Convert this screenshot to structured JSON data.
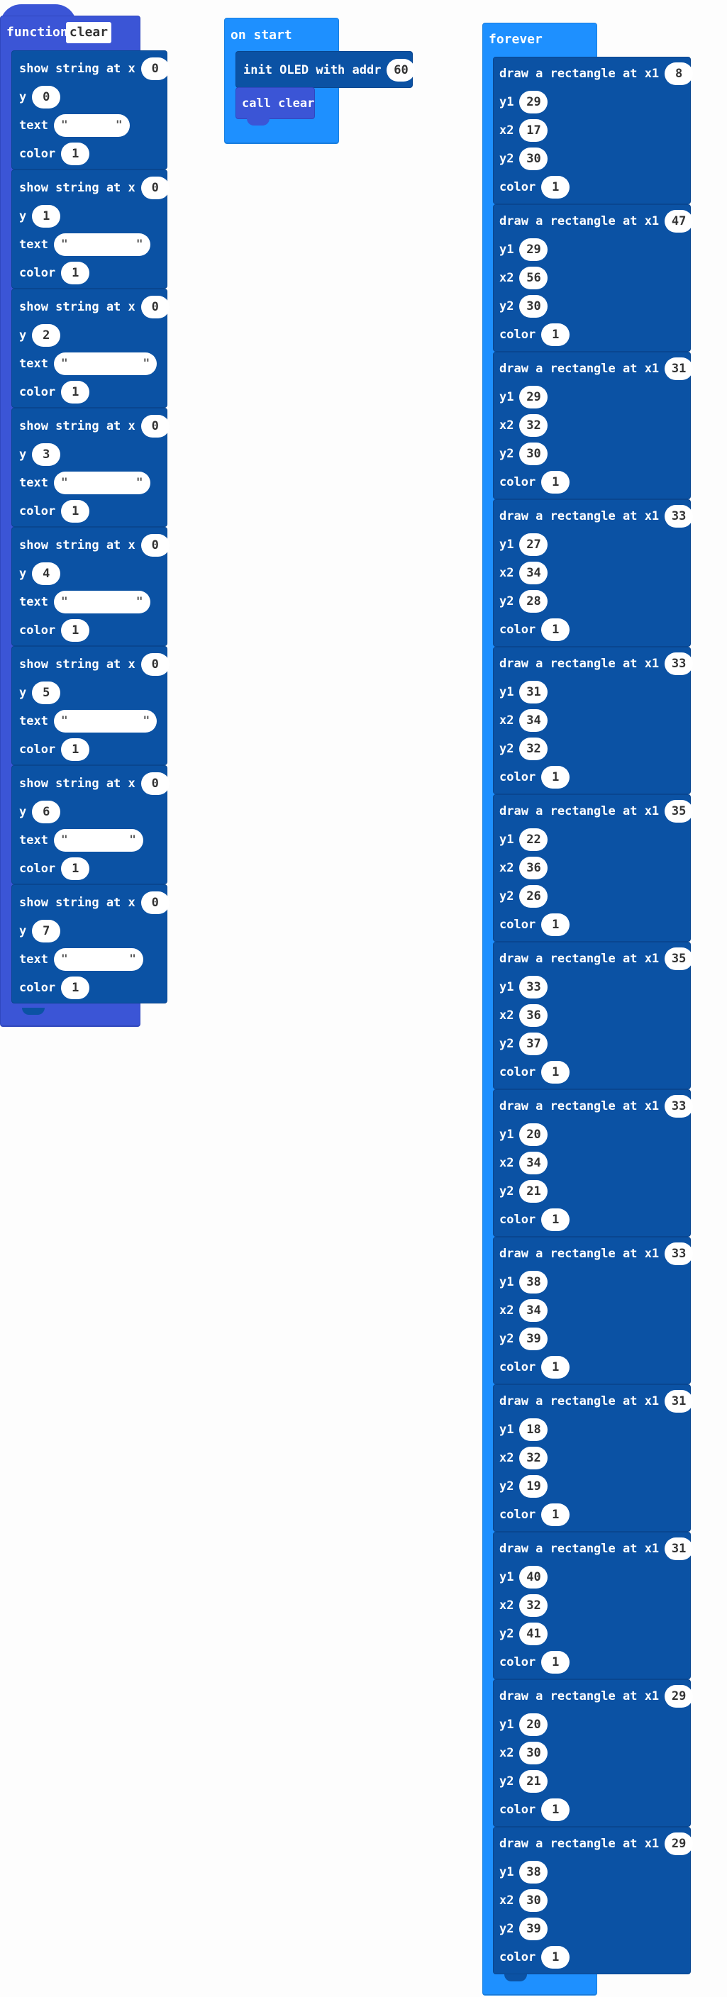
{
  "function_block": {
    "keyword": "function",
    "name": "clear",
    "statements": [
      {
        "label_x": "show string at x",
        "x": "0",
        "label_y": "y",
        "y": "0",
        "label_text": "text",
        "text": "\"       \"",
        "label_color": "color",
        "color": "1"
      },
      {
        "label_x": "show string at x",
        "x": "0",
        "label_y": "y",
        "y": "1",
        "label_text": "text",
        "text": "\"          \"",
        "label_color": "color",
        "color": "1"
      },
      {
        "label_x": "show string at x",
        "x": "0",
        "label_y": "y",
        "y": "2",
        "label_text": "text",
        "text": "\"           \"",
        "label_color": "color",
        "color": "1"
      },
      {
        "label_x": "show string at x",
        "x": "0",
        "label_y": "y",
        "y": "3",
        "label_text": "text",
        "text": "\"          \"",
        "label_color": "color",
        "color": "1"
      },
      {
        "label_x": "show string at x",
        "x": "0",
        "label_y": "y",
        "y": "4",
        "label_text": "text",
        "text": "\"          \"",
        "label_color": "color",
        "color": "1"
      },
      {
        "label_x": "show string at x",
        "x": "0",
        "label_y": "y",
        "y": "5",
        "label_text": "text",
        "text": "\"           \"",
        "label_color": "color",
        "color": "1"
      },
      {
        "label_x": "show string at x",
        "x": "0",
        "label_y": "y",
        "y": "6",
        "label_text": "text",
        "text": "\"         \"",
        "label_color": "color",
        "color": "1"
      },
      {
        "label_x": "show string at x",
        "x": "0",
        "label_y": "y",
        "y": "7",
        "label_text": "text",
        "text": "\"         \"",
        "label_color": "color",
        "color": "1"
      }
    ]
  },
  "on_start_block": {
    "title": "on start",
    "init_label": "init OLED with addr",
    "init_value": "60",
    "call_label": "call clear"
  },
  "forever_block": {
    "title": "forever",
    "statements": [
      {
        "label_x1": "draw a rectangle at x1",
        "x1": "8",
        "y1": "29",
        "x2": "17",
        "y2": "30",
        "color": "1"
      },
      {
        "label_x1": "draw a rectangle at x1",
        "x1": "47",
        "y1": "29",
        "x2": "56",
        "y2": "30",
        "color": "1"
      },
      {
        "label_x1": "draw a rectangle at x1",
        "x1": "31",
        "y1": "29",
        "x2": "32",
        "y2": "30",
        "color": "1"
      },
      {
        "label_x1": "draw a rectangle at x1",
        "x1": "33",
        "y1": "27",
        "x2": "34",
        "y2": "28",
        "color": "1"
      },
      {
        "label_x1": "draw a rectangle at x1",
        "x1": "33",
        "y1": "31",
        "x2": "34",
        "y2": "32",
        "color": "1"
      },
      {
        "label_x1": "draw a rectangle at x1",
        "x1": "35",
        "y1": "22",
        "x2": "36",
        "y2": "26",
        "color": "1"
      },
      {
        "label_x1": "draw a rectangle at x1",
        "x1": "35",
        "y1": "33",
        "x2": "36",
        "y2": "37",
        "color": "1"
      },
      {
        "label_x1": "draw a rectangle at x1",
        "x1": "33",
        "y1": "20",
        "x2": "34",
        "y2": "21",
        "color": "1"
      },
      {
        "label_x1": "draw a rectangle at x1",
        "x1": "33",
        "y1": "38",
        "x2": "34",
        "y2": "39",
        "color": "1"
      },
      {
        "label_x1": "draw a rectangle at x1",
        "x1": "31",
        "y1": "18",
        "x2": "32",
        "y2": "19",
        "color": "1"
      },
      {
        "label_x1": "draw a rectangle at x1",
        "x1": "31",
        "y1": "40",
        "x2": "32",
        "y2": "41",
        "color": "1"
      },
      {
        "label_x1": "draw a rectangle at x1",
        "x1": "29",
        "y1": "20",
        "x2": "30",
        "y2": "21",
        "color": "1"
      },
      {
        "label_x1": "draw a rectangle at x1",
        "x1": "29",
        "y1": "38",
        "x2": "30",
        "y2": "39",
        "color": "1"
      }
    ],
    "labels": {
      "y1": "y1",
      "x2": "x2",
      "y2": "y2",
      "color": "color"
    }
  },
  "colors": {
    "function_block": "#3b55d6",
    "event_block": "#1e90ff",
    "statement_block": "#0b52a4",
    "input_pill": "#ffffff"
  }
}
